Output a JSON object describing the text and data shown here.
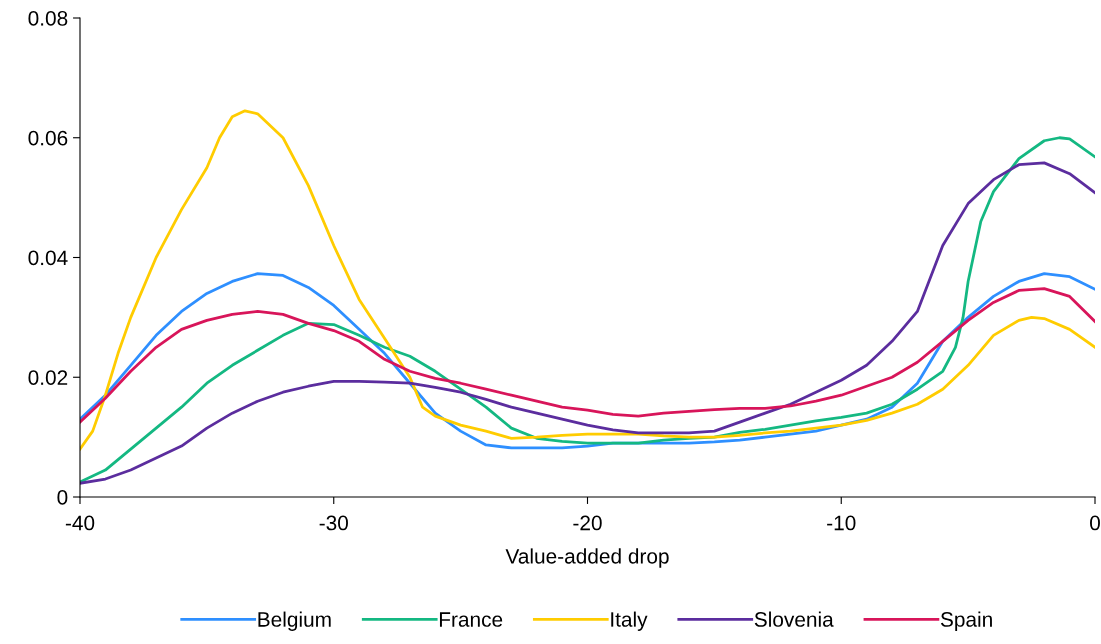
{
  "chart_data": {
    "type": "line",
    "xlabel": "Value-added drop",
    "xlim": [
      -40,
      0
    ],
    "xticks": [
      -40,
      -30,
      -20,
      -10,
      0
    ],
    "ylim": [
      0,
      0.08
    ],
    "yticks": [
      0,
      0.02,
      0.04,
      0.06,
      0.08
    ],
    "grid": false,
    "legend": "bottom",
    "marker": "none",
    "line_style": "solid",
    "x": [
      -40,
      -39,
      -38,
      -37,
      -36,
      -35,
      -34,
      -33,
      -32,
      -31,
      -30,
      -29,
      -28,
      -27,
      -26,
      -25,
      -24,
      -23,
      -22,
      -21,
      -20,
      -19,
      -18,
      -17,
      -16,
      -15,
      -14,
      -13,
      -12,
      -11,
      -10,
      -9,
      -8,
      -7,
      -6,
      -5,
      -4,
      -3,
      -2,
      -1,
      0
    ],
    "series": [
      {
        "name": "Belgium",
        "color": "#2e8fff",
        "values": [
          0.013,
          0.017,
          0.022,
          0.027,
          0.031,
          0.034,
          0.036,
          0.0373,
          0.037,
          0.035,
          0.032,
          0.028,
          0.024,
          0.019,
          0.014,
          0.011,
          0.0087,
          0.0082,
          0.0082,
          0.0082,
          0.0085,
          0.009,
          0.009,
          0.009,
          0.009,
          0.0092,
          0.0095,
          0.01,
          0.0105,
          0.011,
          0.012,
          0.013,
          0.015,
          0.019,
          0.026,
          0.03,
          0.0335,
          0.036,
          0.0373,
          0.0368,
          0.0347
        ]
      },
      {
        "name": "France",
        "color": "#14b882",
        "x": [
          -40,
          -39,
          -38,
          -37,
          -36,
          -35,
          -34,
          -33,
          -32,
          -31,
          -30,
          -29,
          -28,
          -27,
          -26,
          -25,
          -24,
          -23,
          -22,
          -21,
          -20,
          -19,
          -18,
          -17,
          -16,
          -15,
          -14,
          -13,
          -12,
          -11,
          -10,
          -9,
          -8,
          -7,
          -6,
          -5.5,
          -5.2,
          -5,
          -4.5,
          -4,
          -3,
          -2,
          -1.4,
          -1,
          0
        ],
        "values": [
          0.0025,
          0.0045,
          0.008,
          0.0115,
          0.015,
          0.019,
          0.022,
          0.0245,
          0.027,
          0.029,
          0.0288,
          0.027,
          0.025,
          0.0235,
          0.021,
          0.018,
          0.015,
          0.0115,
          0.0098,
          0.0093,
          0.009,
          0.009,
          0.009,
          0.0095,
          0.0098,
          0.01,
          0.0108,
          0.0113,
          0.012,
          0.0127,
          0.0133,
          0.014,
          0.0155,
          0.018,
          0.021,
          0.025,
          0.03,
          0.036,
          0.046,
          0.051,
          0.0565,
          0.0595,
          0.06,
          0.0598,
          0.0568
        ]
      },
      {
        "name": "Italy",
        "color": "#ffcc00",
        "x": [
          -40,
          -39.5,
          -39,
          -38.5,
          -38,
          -37,
          -36,
          -35,
          -34.5,
          -34,
          -33.5,
          -33,
          -32,
          -31,
          -30,
          -29,
          -28,
          -27,
          -26.5,
          -26,
          -25,
          -24,
          -23,
          -22,
          -21,
          -20,
          -19,
          -18,
          -17,
          -16,
          -15,
          -14,
          -13,
          -12,
          -11,
          -10,
          -9,
          -8,
          -7,
          -6,
          -5,
          -4,
          -3,
          -2.5,
          -2,
          -1,
          0
        ],
        "values": [
          0.008,
          0.011,
          0.017,
          0.024,
          0.03,
          0.04,
          0.048,
          0.055,
          0.06,
          0.0635,
          0.0645,
          0.064,
          0.06,
          0.052,
          0.042,
          0.033,
          0.0265,
          0.02,
          0.015,
          0.0135,
          0.012,
          0.011,
          0.0098,
          0.01,
          0.0103,
          0.0105,
          0.0105,
          0.0105,
          0.0102,
          0.01,
          0.01,
          0.0103,
          0.0107,
          0.011,
          0.0115,
          0.012,
          0.0128,
          0.014,
          0.0155,
          0.018,
          0.022,
          0.027,
          0.0295,
          0.03,
          0.0298,
          0.028,
          0.025
        ]
      },
      {
        "name": "Slovenia",
        "color": "#5b2d9e",
        "values": [
          0.0023,
          0.003,
          0.0045,
          0.0065,
          0.0085,
          0.0115,
          0.014,
          0.016,
          0.0175,
          0.0185,
          0.0193,
          0.0193,
          0.0192,
          0.019,
          0.0183,
          0.0175,
          0.0163,
          0.015,
          0.014,
          0.013,
          0.012,
          0.0112,
          0.0107,
          0.0107,
          0.0107,
          0.011,
          0.0125,
          0.014,
          0.0155,
          0.0175,
          0.0195,
          0.022,
          0.026,
          0.031,
          0.042,
          0.049,
          0.053,
          0.0555,
          0.0558,
          0.054,
          0.0508
        ]
      },
      {
        "name": "Spain",
        "color": "#d8155a",
        "values": [
          0.0125,
          0.0165,
          0.021,
          0.025,
          0.028,
          0.0295,
          0.0305,
          0.031,
          0.0305,
          0.029,
          0.0278,
          0.026,
          0.023,
          0.021,
          0.0198,
          0.019,
          0.018,
          0.017,
          0.016,
          0.015,
          0.0145,
          0.0138,
          0.0135,
          0.014,
          0.0143,
          0.0146,
          0.0148,
          0.0148,
          0.0152,
          0.016,
          0.017,
          0.0185,
          0.02,
          0.0225,
          0.026,
          0.0295,
          0.0325,
          0.0345,
          0.0348,
          0.0335,
          0.0293
        ]
      }
    ]
  }
}
